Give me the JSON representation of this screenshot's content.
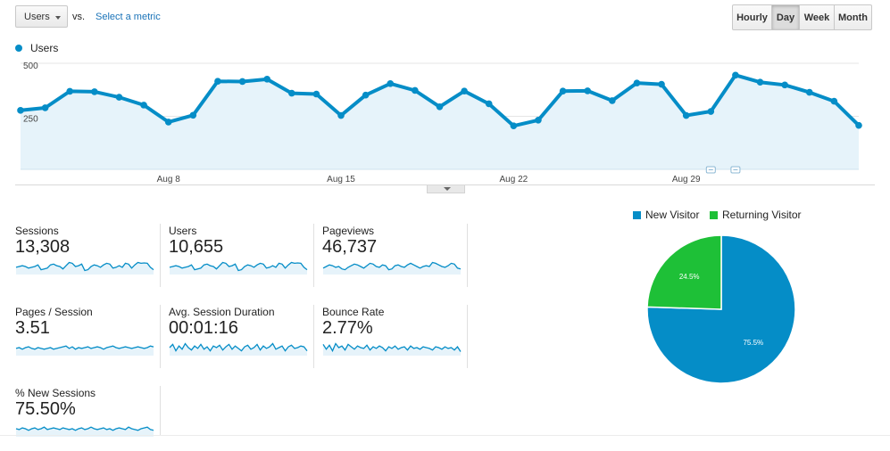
{
  "toolbar": {
    "metric_select_label": "Users",
    "vs_label": "vs.",
    "select_metric_link": "Select a metric",
    "period_buttons": [
      {
        "label": "Hourly",
        "active": false
      },
      {
        "label": "Day",
        "active": true
      },
      {
        "label": "Week",
        "active": false
      },
      {
        "label": "Month",
        "active": false
      }
    ]
  },
  "colors": {
    "series": "#058dc7",
    "area_fill": "#e6f3fa",
    "new_visitor": "#058dc7",
    "returning_visitor": "#1ec037"
  },
  "chart_data": {
    "type": "area",
    "series_name": "Users",
    "y_ticks": [
      "500",
      "250"
    ],
    "ylim": [
      0,
      500
    ],
    "x_tick_labels": [
      "Aug 8",
      "Aug 15",
      "Aug 22",
      "Aug 29"
    ],
    "x_tick_days": [
      8,
      15,
      22,
      29
    ],
    "x_start_day": 2,
    "grid": true,
    "values": [
      278,
      290,
      368,
      366,
      340,
      303,
      223,
      255,
      415,
      414,
      425,
      359,
      355,
      254,
      350,
      404,
      372,
      295,
      369,
      309,
      205,
      232,
      369,
      370,
      324,
      407,
      401,
      254,
      273,
      444,
      411,
      398,
      363,
      321,
      207
    ],
    "annotation_days": [
      30,
      31
    ]
  },
  "metrics": [
    {
      "label": "Sessions",
      "value": "13,308",
      "spark": [
        0.45,
        0.5,
        0.55,
        0.5,
        0.4,
        0.45,
        0.5,
        0.6,
        0.3,
        0.35,
        0.4,
        0.6,
        0.65,
        0.55,
        0.5,
        0.35,
        0.55,
        0.75,
        0.7,
        0.5,
        0.55,
        0.65,
        0.25,
        0.3,
        0.5,
        0.6,
        0.55,
        0.45,
        0.6,
        0.7,
        0.65,
        0.4,
        0.45,
        0.55,
        0.45,
        0.7,
        0.65,
        0.4,
        0.6,
        0.75,
        0.7,
        0.72,
        0.7,
        0.45,
        0.3
      ]
    },
    {
      "label": "Users",
      "value": "10,655",
      "spark": [
        0.45,
        0.5,
        0.55,
        0.5,
        0.4,
        0.45,
        0.5,
        0.6,
        0.3,
        0.35,
        0.4,
        0.6,
        0.65,
        0.55,
        0.5,
        0.35,
        0.55,
        0.75,
        0.7,
        0.5,
        0.55,
        0.65,
        0.25,
        0.3,
        0.5,
        0.6,
        0.55,
        0.45,
        0.6,
        0.7,
        0.65,
        0.4,
        0.45,
        0.55,
        0.45,
        0.7,
        0.65,
        0.4,
        0.6,
        0.75,
        0.7,
        0.72,
        0.7,
        0.45,
        0.3
      ]
    },
    {
      "label": "Pageviews",
      "value": "46,737",
      "spark": [
        0.4,
        0.5,
        0.6,
        0.55,
        0.45,
        0.5,
        0.35,
        0.3,
        0.45,
        0.55,
        0.65,
        0.6,
        0.5,
        0.4,
        0.55,
        0.7,
        0.65,
        0.5,
        0.45,
        0.6,
        0.55,
        0.3,
        0.35,
        0.55,
        0.6,
        0.5,
        0.45,
        0.6,
        0.7,
        0.6,
        0.5,
        0.4,
        0.5,
        0.55,
        0.5,
        0.75,
        0.7,
        0.6,
        0.5,
        0.45,
        0.55,
        0.7,
        0.65,
        0.4,
        0.35
      ]
    },
    {
      "label": "Pages / Session",
      "value": "3.51",
      "spark": [
        0.45,
        0.5,
        0.4,
        0.5,
        0.55,
        0.45,
        0.4,
        0.5,
        0.45,
        0.4,
        0.45,
        0.5,
        0.4,
        0.45,
        0.5,
        0.55,
        0.6,
        0.45,
        0.55,
        0.4,
        0.5,
        0.45,
        0.5,
        0.55,
        0.45,
        0.5,
        0.55,
        0.5,
        0.4,
        0.5,
        0.55,
        0.6,
        0.5,
        0.45,
        0.5,
        0.55,
        0.5,
        0.45,
        0.5,
        0.55,
        0.5,
        0.45,
        0.5,
        0.6,
        0.55
      ]
    },
    {
      "label": "Avg. Session Duration",
      "value": "00:01:16",
      "spark": [
        0.5,
        0.7,
        0.3,
        0.6,
        0.4,
        0.75,
        0.5,
        0.35,
        0.6,
        0.45,
        0.7,
        0.4,
        0.55,
        0.3,
        0.6,
        0.5,
        0.65,
        0.35,
        0.55,
        0.7,
        0.4,
        0.6,
        0.45,
        0.3,
        0.55,
        0.65,
        0.4,
        0.5,
        0.7,
        0.35,
        0.6,
        0.45,
        0.55,
        0.75,
        0.4,
        0.5,
        0.6,
        0.3,
        0.55,
        0.65,
        0.45,
        0.5,
        0.6,
        0.55,
        0.3
      ]
    },
    {
      "label": "Bounce Rate",
      "value": "2.77%",
      "spark": [
        0.7,
        0.4,
        0.65,
        0.3,
        0.75,
        0.5,
        0.6,
        0.35,
        0.7,
        0.55,
        0.4,
        0.6,
        0.5,
        0.45,
        0.65,
        0.35,
        0.55,
        0.45,
        0.6,
        0.5,
        0.3,
        0.55,
        0.45,
        0.6,
        0.4,
        0.5,
        0.55,
        0.35,
        0.6,
        0.45,
        0.5,
        0.4,
        0.55,
        0.5,
        0.45,
        0.35,
        0.55,
        0.5,
        0.4,
        0.55,
        0.45,
        0.5,
        0.35,
        0.55,
        0.25
      ]
    },
    {
      "label": "% New Sessions",
      "value": "75.50%",
      "spark": [
        0.5,
        0.45,
        0.55,
        0.5,
        0.4,
        0.5,
        0.55,
        0.45,
        0.5,
        0.6,
        0.45,
        0.5,
        0.55,
        0.5,
        0.45,
        0.55,
        0.5,
        0.45,
        0.5,
        0.4,
        0.5,
        0.55,
        0.45,
        0.5,
        0.6,
        0.5,
        0.45,
        0.5,
        0.55,
        0.45,
        0.5,
        0.4,
        0.5,
        0.55,
        0.5,
        0.45,
        0.6,
        0.5,
        0.45,
        0.4,
        0.5,
        0.55,
        0.6,
        0.45,
        0.4
      ]
    }
  ],
  "pie": {
    "type": "pie",
    "legend": [
      {
        "label": "New Visitor",
        "color_key": "new_visitor"
      },
      {
        "label": "Returning Visitor",
        "color_key": "returning_visitor"
      }
    ],
    "slices": [
      {
        "name": "New Visitor",
        "value": 75.5,
        "label": "75.5%"
      },
      {
        "name": "Returning Visitor",
        "value": 24.5,
        "label": "24.5%"
      }
    ]
  }
}
